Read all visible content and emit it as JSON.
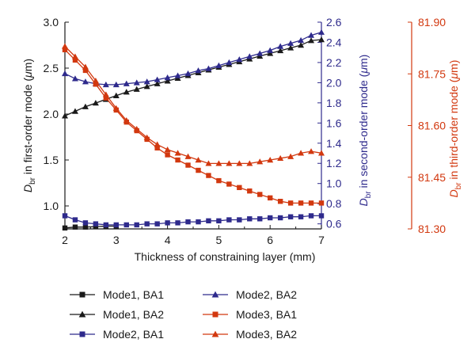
{
  "chart_data": {
    "type": "line",
    "xlabel": "Thickness of constraining layer (mm)",
    "x_ticks": [
      "2",
      "3",
      "4",
      "5",
      "6",
      "7"
    ],
    "xlim": [
      2,
      7
    ],
    "y_axes": [
      {
        "id": "y1",
        "label_main": "D",
        "label_sub": "br",
        "label_rest": " in first-order mode (",
        "label_unit_italic": "μ",
        "label_end": "m)",
        "ticks": [
          "1.0",
          "1.5",
          "2.0",
          "2.5",
          "3.0"
        ],
        "lim": [
          0.75,
          3.0
        ],
        "color": "#1a1a1a"
      },
      {
        "id": "y2",
        "label_main": "D",
        "label_sub": "br",
        "label_rest": " in second-order mode (",
        "label_unit_italic": "μ",
        "label_end": "m)",
        "ticks": [
          "0.6",
          "0.8",
          "1.0",
          "1.2",
          "1.4",
          "1.6",
          "1.8",
          "2.0",
          "2.2",
          "2.4",
          "2.6"
        ],
        "lim": [
          0.55,
          2.6
        ],
        "color": "#2e2a8c"
      },
      {
        "id": "y3",
        "label_main": "D",
        "label_sub": "br",
        "label_rest": " in third-order mode (",
        "label_unit_italic": "μ",
        "label_end": "m)",
        "ticks": [
          "81.30",
          "81.45",
          "81.60",
          "81.75",
          "81.90"
        ],
        "lim": [
          81.3,
          81.9
        ],
        "color": "#d2380f"
      }
    ],
    "series": [
      {
        "name": "Mode1, BA1",
        "axis": "y1",
        "color": "#1a1a1a",
        "marker": "square",
        "x": [
          2.0,
          2.2,
          2.4,
          2.6,
          2.8,
          3.0
        ],
        "y": [
          0.76,
          0.77,
          0.77,
          0.775,
          0.78,
          0.78
        ]
      },
      {
        "name": "Mode1, BA2",
        "axis": "y1",
        "color": "#1a1a1a",
        "marker": "triangle",
        "x": [
          2.0,
          2.2,
          2.4,
          2.6,
          2.8,
          3.0,
          3.2,
          3.4,
          3.6,
          3.8,
          4.0,
          4.2,
          4.4,
          4.6,
          4.8,
          5.0,
          5.2,
          5.4,
          5.6,
          5.8,
          6.0,
          6.2,
          6.4,
          6.6,
          6.8,
          7.0
        ],
        "y": [
          1.98,
          2.03,
          2.08,
          2.12,
          2.16,
          2.2,
          2.24,
          2.27,
          2.3,
          2.33,
          2.36,
          2.39,
          2.42,
          2.45,
          2.48,
          2.51,
          2.54,
          2.57,
          2.6,
          2.63,
          2.66,
          2.69,
          2.72,
          2.75,
          2.8,
          2.81
        ]
      },
      {
        "name": "Mode2, BA1",
        "axis": "y2",
        "color": "#2e2a8c",
        "marker": "square",
        "x": [
          2.0,
          2.2,
          2.4,
          2.6,
          2.8,
          3.0,
          3.2,
          3.4,
          3.6,
          3.8,
          4.0,
          4.2,
          4.4,
          4.6,
          4.8,
          5.0,
          5.2,
          5.4,
          5.6,
          5.8,
          6.0,
          6.2,
          6.4,
          6.6,
          6.8,
          7.0
        ],
        "y": [
          0.68,
          0.64,
          0.61,
          0.6,
          0.59,
          0.59,
          0.59,
          0.59,
          0.6,
          0.6,
          0.61,
          0.61,
          0.62,
          0.62,
          0.63,
          0.63,
          0.64,
          0.64,
          0.65,
          0.65,
          0.66,
          0.66,
          0.67,
          0.67,
          0.68,
          0.68
        ]
      },
      {
        "name": "Mode2, BA2",
        "axis": "y2",
        "color": "#2e2a8c",
        "marker": "triangle",
        "x": [
          2.0,
          2.2,
          2.4,
          2.6,
          2.8,
          3.0,
          3.2,
          3.4,
          3.6,
          3.8,
          4.0,
          4.2,
          4.4,
          4.6,
          4.8,
          5.0,
          5.2,
          5.4,
          5.6,
          5.8,
          6.0,
          6.2,
          6.4,
          6.6,
          6.8,
          7.0
        ],
        "y": [
          2.09,
          2.04,
          2.01,
          1.99,
          1.98,
          1.98,
          1.99,
          2.0,
          2.01,
          2.03,
          2.05,
          2.07,
          2.09,
          2.12,
          2.14,
          2.17,
          2.2,
          2.23,
          2.26,
          2.29,
          2.32,
          2.36,
          2.39,
          2.42,
          2.47,
          2.5
        ]
      },
      {
        "name": "Mode3, BA1",
        "axis": "y3",
        "color": "#d2380f",
        "marker": "square",
        "x": [
          2.0,
          2.2,
          2.4,
          2.6,
          2.8,
          3.0,
          3.2,
          3.4,
          3.6,
          3.8,
          4.0,
          4.2,
          4.4,
          4.6,
          4.8,
          5.0,
          5.2,
          5.4,
          5.6,
          5.8,
          6.0,
          6.2,
          6.4,
          6.6,
          6.8,
          7.0
        ],
        "y": [
          81.82,
          81.79,
          81.76,
          81.72,
          81.68,
          81.645,
          81.61,
          81.585,
          81.56,
          81.535,
          81.515,
          81.5,
          81.485,
          81.47,
          81.455,
          81.44,
          81.43,
          81.42,
          81.41,
          81.4,
          81.39,
          81.38,
          81.375,
          81.375,
          81.375,
          81.375
        ]
      },
      {
        "name": "Mode3, BA2",
        "axis": "y3",
        "color": "#d2380f",
        "marker": "triangle",
        "x": [
          2.0,
          2.2,
          2.4,
          2.6,
          2.8,
          3.0,
          3.2,
          3.4,
          3.6,
          3.8,
          4.0,
          4.2,
          4.4,
          4.6,
          4.8,
          5.0,
          5.2,
          5.4,
          5.6,
          5.8,
          6.0,
          6.2,
          6.4,
          6.6,
          6.8,
          7.0
        ],
        "y": [
          81.83,
          81.8,
          81.77,
          81.73,
          81.69,
          81.65,
          81.615,
          81.59,
          81.565,
          81.545,
          81.53,
          81.52,
          81.51,
          81.5,
          81.49,
          81.49,
          81.49,
          81.49,
          81.49,
          81.495,
          81.5,
          81.505,
          81.51,
          81.52,
          81.525,
          81.52
        ]
      }
    ],
    "legend_position": "bottom",
    "grid": false
  }
}
